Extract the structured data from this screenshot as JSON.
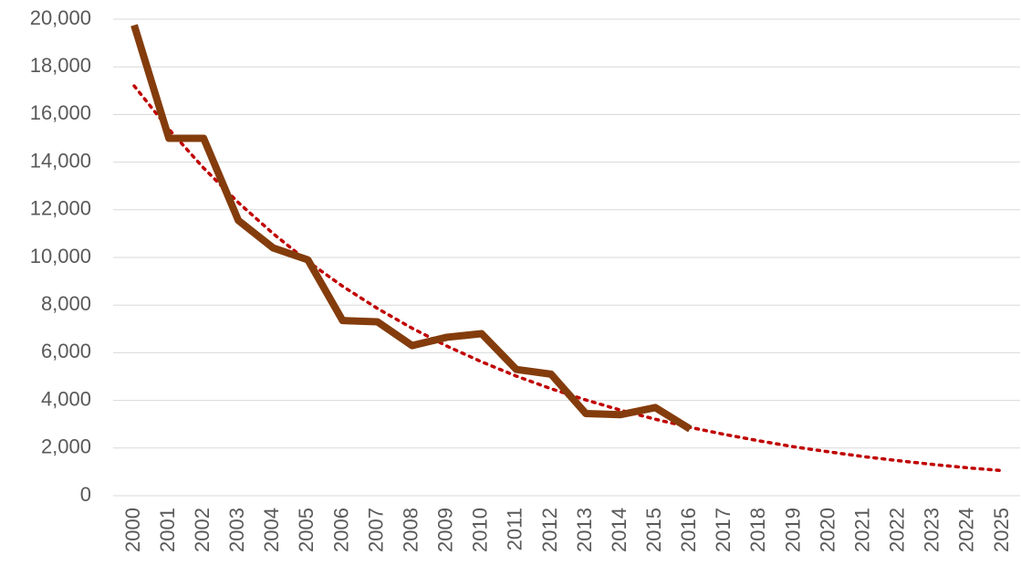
{
  "chart_data": {
    "type": "line",
    "categories": [
      "2000",
      "2001",
      "2002",
      "2003",
      "2004",
      "2005",
      "2006",
      "2007",
      "2008",
      "2009",
      "2010",
      "2011",
      "2012",
      "2013",
      "2014",
      "2015",
      "2016",
      "2017",
      "2018",
      "2019",
      "2020",
      "2021",
      "2022",
      "2023",
      "2024",
      "2025"
    ],
    "series": [
      {
        "color": "#843c0c",
        "style": "solid",
        "values": [
          19750,
          15000,
          15000,
          11550,
          10400,
          9900,
          7350,
          7300,
          6300,
          6650,
          6800,
          5300,
          5100,
          3450,
          3400,
          3700,
          2800,
          null,
          null,
          null,
          null,
          null,
          null,
          null,
          null,
          null
        ]
      },
      {
        "color": "#c00000",
        "style": "dotted",
        "values": [
          17200,
          15380,
          13750,
          12300,
          11000,
          9830,
          8790,
          7860,
          7030,
          6280,
          5620,
          5020,
          4490,
          4020,
          3590,
          3210,
          2870,
          2570,
          2300,
          2050,
          1840,
          1640,
          1470,
          1310,
          1170,
          1050
        ]
      }
    ],
    "ylim": [
      0,
      20000
    ],
    "yticks": [
      0,
      {
        "value": 2000,
        "label": "2,000"
      },
      {
        "value": 4000,
        "label": "4,000"
      },
      {
        "value": 6000,
        "label": "6,000"
      },
      {
        "value": 8000,
        "label": "8,000"
      },
      {
        "value": 10000,
        "label": "10,000"
      },
      {
        "value": 12000,
        "label": "12,000"
      },
      {
        "value": 14000,
        "label": "14,000"
      },
      {
        "value": 16000,
        "label": "16,000"
      },
      {
        "value": 18000,
        "label": "18,000"
      },
      {
        "value": 20000,
        "label": "20,000"
      }
    ],
    "grid": true
  }
}
